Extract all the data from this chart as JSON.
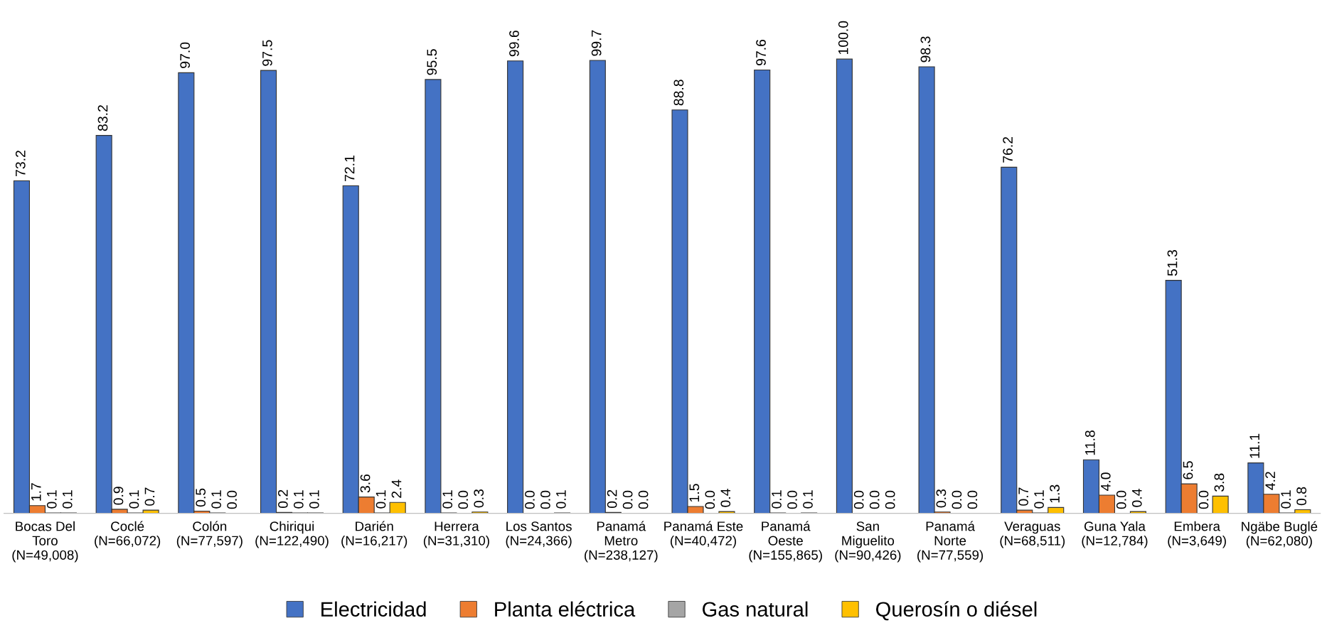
{
  "chart_data": {
    "type": "bar",
    "categories": [
      "Bocas Del\nToro\n(N=49,008)",
      "Coclé\n(N=66,072)",
      "Colón\n(N=77,597)",
      "Chiriqui\n(N=122,490)",
      "Darién\n(N=16,217)",
      "Herrera\n(N=31,310)",
      "Los Santos\n(N=24,366)",
      "Panamá\nMetro\n(N=238,127)",
      "Panamá Este\n(N=40,472)",
      "Panamá\nOeste\n(N=155,865)",
      "San\nMiguelito\n(N=90,426)",
      "Panamá\nNorte\n(N=77,559)",
      "Veraguas\n(N=68,511)",
      "Guna Yala\n(N=12,784)",
      "Embera\n(N=3,649)",
      "Ngäbe Buglé\n(N=62,080)"
    ],
    "series": [
      {
        "name": "Electricidad",
        "color": "#4472c4",
        "values": [
          73.2,
          83.2,
          97.0,
          97.5,
          72.1,
          95.5,
          99.6,
          99.7,
          88.8,
          97.6,
          100.0,
          98.3,
          76.2,
          11.8,
          51.3,
          11.1
        ],
        "value_labels": [
          "73.2",
          "83.2",
          "97.0",
          "97.5",
          "72.1",
          "95.5",
          "99.6",
          "99.7",
          "88.8",
          "97.6",
          "100.0",
          "98.3",
          "76.2",
          "11.8",
          "51.3",
          "11.1"
        ]
      },
      {
        "name": "Planta eléctrica",
        "color": "#ed7d31",
        "values": [
          1.7,
          0.9,
          0.5,
          0.2,
          3.6,
          0.1,
          0.0,
          0.2,
          1.5,
          0.1,
          0.0,
          0.3,
          0.7,
          4.0,
          6.5,
          4.2
        ],
        "value_labels": [
          "1.7",
          "0.9",
          "0.5",
          "0.2",
          "3.6",
          "0.1",
          "0.0",
          "0.2",
          "1.5",
          "0.1",
          "0.0",
          "0.3",
          "0.7",
          "4.0",
          "6.5",
          "4.2"
        ]
      },
      {
        "name": "Gas natural",
        "color": "#a5a5a5",
        "values": [
          0.1,
          0.1,
          0.1,
          0.1,
          0.1,
          0.0,
          0.0,
          0.0,
          0.0,
          0.0,
          0.0,
          0.0,
          0.1,
          0.0,
          0.0,
          0.1
        ],
        "value_labels": [
          "0.1",
          "0.1",
          "0.1",
          "0.1",
          "0.1",
          "0.0",
          "0.0",
          "0.0",
          "0.0",
          "0.0",
          "0.0",
          "0.0",
          "0.1",
          "0.0",
          "0.0",
          "0.1"
        ]
      },
      {
        "name": "Querosín o diésel",
        "color": "#ffc000",
        "values": [
          0.1,
          0.7,
          0.0,
          0.1,
          2.4,
          0.3,
          0.1,
          0.0,
          0.4,
          0.1,
          0.0,
          0.0,
          1.3,
          0.4,
          3.8,
          0.8
        ],
        "value_labels": [
          "0.1",
          "0.7",
          "0.0",
          "0.1",
          "2.4",
          "0.3",
          "0.1",
          "0.0",
          "0.4",
          "0.1",
          "0.0",
          "0.0",
          "1.3",
          "0.4",
          "3.8",
          "0.8"
        ]
      }
    ],
    "legend": "bottom"
  }
}
